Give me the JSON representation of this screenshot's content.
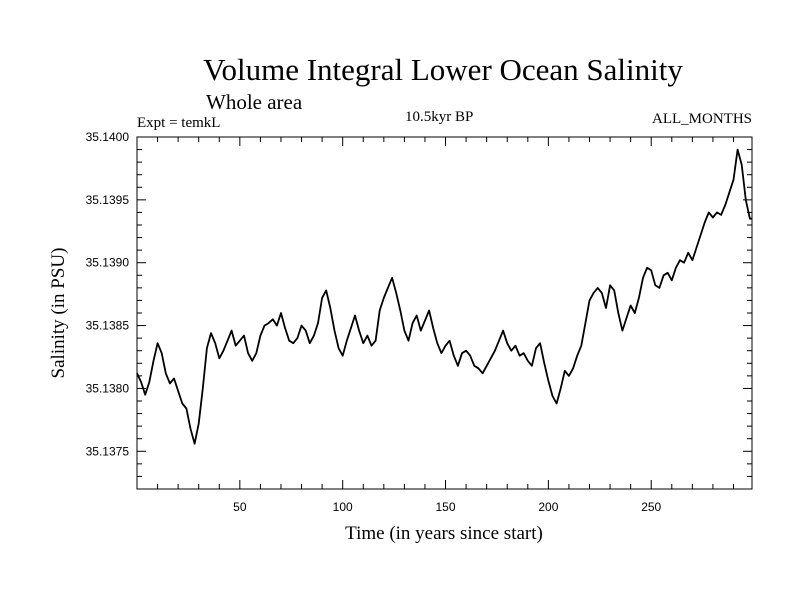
{
  "chart_data": {
    "type": "line",
    "title": "Volume Integral Lower Ocean Salinity",
    "subtitle": "Whole area",
    "left_label": "Expt = temkL",
    "center_label": "10.5kyr BP",
    "right_label": "ALL_MONTHS",
    "xlabel": "Time (in years since start)",
    "ylabel": "Salinity (in PSU)",
    "xlim": [
      0,
      299
    ],
    "ylim": [
      35.1372,
      35.14
    ],
    "x_ticks": [
      50,
      100,
      150,
      200,
      250
    ],
    "y_ticks": [
      "35.1375",
      "35.1380",
      "35.1385",
      "35.1390",
      "35.1395",
      "35.1400"
    ],
    "series": [
      {
        "name": "salinity",
        "x": [
          0,
          2,
          4,
          6,
          8,
          10,
          12,
          14,
          16,
          18,
          20,
          22,
          24,
          26,
          28,
          30,
          32,
          34,
          36,
          38,
          40,
          42,
          44,
          46,
          48,
          50,
          52,
          54,
          56,
          58,
          60,
          62,
          64,
          66,
          68,
          70,
          72,
          74,
          76,
          78,
          80,
          82,
          84,
          86,
          88,
          90,
          92,
          94,
          96,
          98,
          100,
          102,
          104,
          106,
          108,
          110,
          112,
          114,
          116,
          118,
          120,
          122,
          124,
          126,
          128,
          130,
          132,
          134,
          136,
          138,
          140,
          142,
          144,
          146,
          148,
          150,
          152,
          154,
          156,
          158,
          160,
          162,
          164,
          166,
          168,
          170,
          172,
          174,
          176,
          178,
          180,
          182,
          184,
          186,
          188,
          190,
          192,
          194,
          196,
          198,
          200,
          202,
          204,
          206,
          208,
          210,
          212,
          214,
          216,
          218,
          220,
          222,
          224,
          226,
          228,
          230,
          232,
          234,
          236,
          238,
          240,
          242,
          244,
          246,
          248,
          250,
          252,
          254,
          256,
          258,
          260,
          262,
          264,
          266,
          268,
          270,
          272,
          274,
          276,
          278,
          280,
          282,
          284,
          286,
          288,
          290,
          292,
          294,
          296,
          298,
          299
        ],
        "values": [
          35.13812,
          35.13805,
          35.13795,
          35.13805,
          35.13822,
          35.13836,
          35.13828,
          35.13812,
          35.13804,
          35.13808,
          35.13798,
          35.13788,
          35.13784,
          35.13768,
          35.13756,
          35.13772,
          35.138,
          35.13832,
          35.13844,
          35.13836,
          35.13824,
          35.1383,
          35.13838,
          35.13846,
          35.13834,
          35.13838,
          35.13842,
          35.13828,
          35.13822,
          35.13828,
          35.13842,
          35.1385,
          35.13852,
          35.13855,
          35.1385,
          35.1386,
          35.13848,
          35.13838,
          35.13836,
          35.1384,
          35.1385,
          35.13846,
          35.13836,
          35.13842,
          35.13852,
          35.13872,
          35.13878,
          35.13864,
          35.13846,
          35.13832,
          35.13826,
          35.13838,
          35.13848,
          35.13858,
          35.13846,
          35.13836,
          35.13842,
          35.13834,
          35.13838,
          35.13862,
          35.13872,
          35.1388,
          35.13888,
          35.13876,
          35.13862,
          35.13846,
          35.13838,
          35.13852,
          35.13858,
          35.13846,
          35.13854,
          35.13862,
          35.13848,
          35.13836,
          35.13828,
          35.13834,
          35.13838,
          35.13826,
          35.13818,
          35.13828,
          35.1383,
          35.13826,
          35.13818,
          35.13816,
          35.13812,
          35.13818,
          35.13824,
          35.1383,
          35.13838,
          35.13846,
          35.13836,
          35.1383,
          35.13834,
          35.13826,
          35.13828,
          35.13822,
          35.13818,
          35.13832,
          35.13836,
          35.1382,
          35.13806,
          35.13794,
          35.13788,
          35.138,
          35.13814,
          35.1381,
          35.13816,
          35.13826,
          35.13834,
          35.13852,
          35.1387,
          35.13876,
          35.1388,
          35.13876,
          35.13864,
          35.13882,
          35.13878,
          35.1386,
          35.13846,
          35.13856,
          35.13866,
          35.1386,
          35.13872,
          35.13888,
          35.13896,
          35.13894,
          35.13882,
          35.1388,
          35.1389,
          35.13892,
          35.13886,
          35.13896,
          35.13902,
          35.139,
          35.13908,
          35.13902,
          35.13912,
          35.13922,
          35.13932,
          35.1394,
          35.13936,
          35.1394,
          35.13938,
          35.13946,
          35.13956,
          35.13966,
          35.1399,
          35.13978,
          35.1395,
          35.13935,
          35.13935
        ]
      }
    ]
  }
}
